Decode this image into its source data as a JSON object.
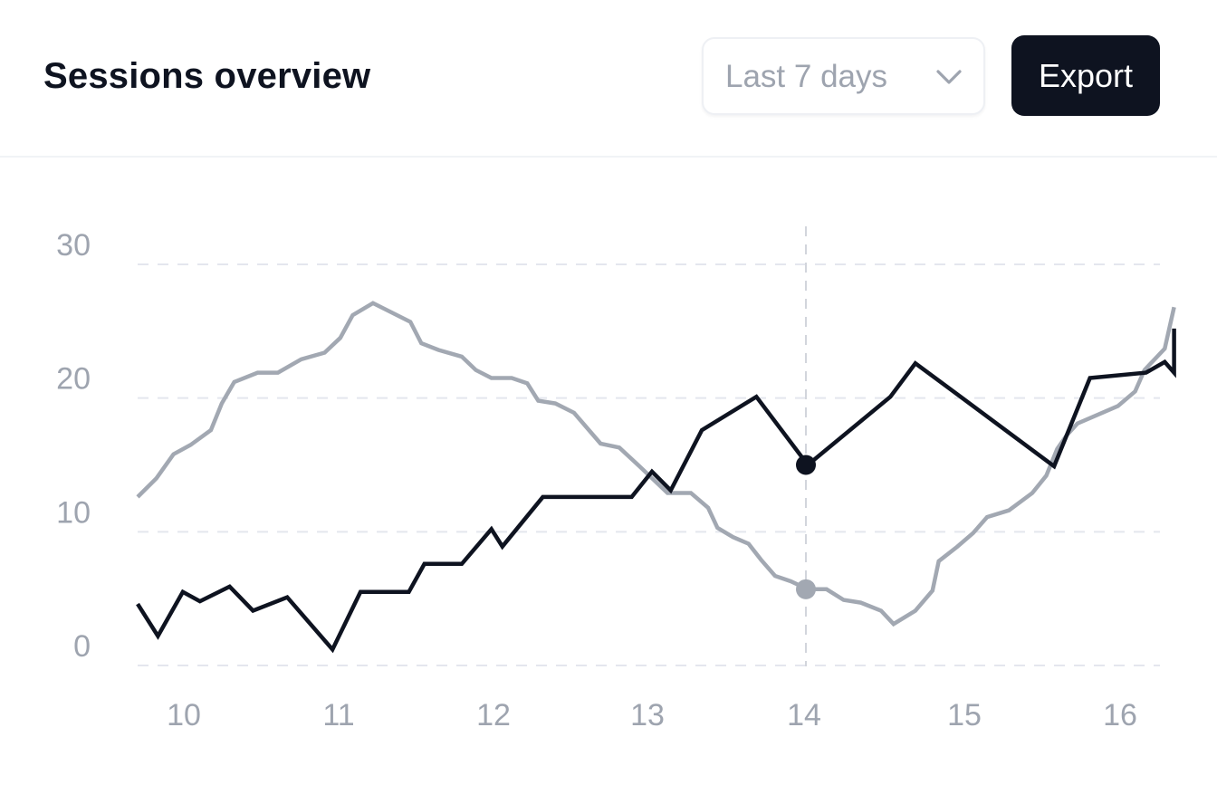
{
  "header": {
    "title": "Sessions overview",
    "range_label": "Last 7 days",
    "export_label": "Export"
  },
  "icons": {
    "range_chevron": "chevron-down-icon"
  },
  "colors": {
    "series_current": "#0e1320",
    "series_previous": "#a2a8b2",
    "grid": "#e4e6ee",
    "tick_text": "#9ea4af"
  },
  "chart_data": {
    "type": "line",
    "title": "",
    "xlabel": "",
    "ylabel": "",
    "xlim": [
      9.7,
      16.3
    ],
    "ylim": [
      0,
      30
    ],
    "x_ticks": [
      10,
      11,
      12,
      13,
      14,
      15,
      16
    ],
    "y_ticks": [
      0,
      10,
      20,
      30
    ],
    "grid": "horizontal-dashed",
    "legend": "none",
    "hover_x": 14,
    "series": [
      {
        "color": "#a2a8b2",
        "points": [
          [
            9.7,
            12.6
          ],
          [
            9.82,
            14.0
          ],
          [
            9.93,
            15.8
          ],
          [
            10.04,
            16.5
          ],
          [
            10.17,
            17.6
          ],
          [
            10.24,
            19.6
          ],
          [
            10.32,
            21.2
          ],
          [
            10.47,
            21.9
          ],
          [
            10.6,
            21.9
          ],
          [
            10.75,
            22.9
          ],
          [
            10.9,
            23.4
          ],
          [
            11.0,
            24.5
          ],
          [
            11.08,
            26.2
          ],
          [
            11.21,
            27.1
          ],
          [
            11.45,
            25.7
          ],
          [
            11.52,
            24.1
          ],
          [
            11.63,
            23.6
          ],
          [
            11.78,
            23.1
          ],
          [
            11.87,
            22.1
          ],
          [
            11.97,
            21.5
          ],
          [
            12.1,
            21.5
          ],
          [
            12.2,
            21.1
          ],
          [
            12.27,
            19.8
          ],
          [
            12.38,
            19.6
          ],
          [
            12.5,
            18.9
          ],
          [
            12.67,
            16.6
          ],
          [
            12.79,
            16.3
          ],
          [
            12.92,
            14.9
          ],
          [
            13.1,
            12.9
          ],
          [
            13.25,
            12.9
          ],
          [
            13.36,
            11.8
          ],
          [
            13.42,
            10.3
          ],
          [
            13.52,
            9.6
          ],
          [
            13.62,
            9.1
          ],
          [
            13.7,
            7.9
          ],
          [
            13.79,
            6.7
          ],
          [
            13.89,
            6.3
          ],
          [
            14.0,
            5.7
          ],
          [
            14.12,
            5.7
          ],
          [
            14.23,
            4.9
          ],
          [
            14.34,
            4.7
          ],
          [
            14.47,
            4.1
          ],
          [
            14.55,
            3.1
          ],
          [
            14.69,
            4.1
          ],
          [
            14.8,
            5.6
          ],
          [
            14.84,
            7.8
          ],
          [
            14.96,
            8.9
          ],
          [
            15.06,
            9.9
          ],
          [
            15.15,
            11.1
          ],
          [
            15.29,
            11.6
          ],
          [
            15.44,
            12.9
          ],
          [
            15.53,
            14.2
          ],
          [
            15.6,
            16.2
          ],
          [
            15.66,
            17.2
          ],
          [
            15.73,
            18.1
          ],
          [
            15.83,
            18.6
          ],
          [
            15.99,
            19.4
          ],
          [
            16.1,
            20.5
          ],
          [
            16.16,
            22.1
          ],
          [
            16.29,
            23.7
          ],
          [
            16.35,
            26.8
          ]
        ]
      },
      {
        "color": "#0e1320",
        "points": [
          [
            9.7,
            4.6
          ],
          [
            9.83,
            2.2
          ],
          [
            9.99,
            5.5
          ],
          [
            10.1,
            4.8
          ],
          [
            10.29,
            5.9
          ],
          [
            10.44,
            4.1
          ],
          [
            10.66,
            5.1
          ],
          [
            10.95,
            1.2
          ],
          [
            11.13,
            5.5
          ],
          [
            11.44,
            5.5
          ],
          [
            11.54,
            7.6
          ],
          [
            11.78,
            7.6
          ],
          [
            11.97,
            10.2
          ],
          [
            12.04,
            8.9
          ],
          [
            12.3,
            12.6
          ],
          [
            12.87,
            12.6
          ],
          [
            13.0,
            14.5
          ],
          [
            13.12,
            13.1
          ],
          [
            13.32,
            17.6
          ],
          [
            13.67,
            20.1
          ],
          [
            14.0,
            15.0
          ],
          [
            14.53,
            20.1
          ],
          [
            14.69,
            22.6
          ],
          [
            14.98,
            20.1
          ],
          [
            15.58,
            14.9
          ],
          [
            15.81,
            21.5
          ],
          [
            16.17,
            21.9
          ],
          [
            16.29,
            22.7
          ],
          [
            16.35,
            21.9
          ],
          [
            16.35,
            25.2
          ]
        ]
      }
    ]
  }
}
